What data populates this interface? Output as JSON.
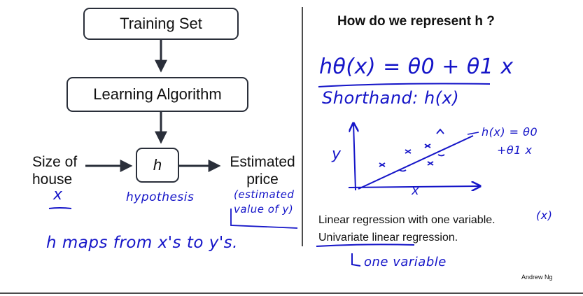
{
  "left": {
    "training_set": "Training Set",
    "learning_algorithm": "Learning Algorithm",
    "h": "h",
    "input_label_line1": "Size of",
    "input_label_line2": "house",
    "output_label_line1": "Estimated",
    "output_label_line2": "price",
    "note_x": "x",
    "note_hypothesis": "hypothesis",
    "note_estimated_line1": "(estimated",
    "note_estimated_line2": "value of y)",
    "note_maps": "h maps from x's to y's."
  },
  "right": {
    "title": "How do we represent h ?",
    "hand_equation": "hθ(x) = θ0 + θ1 x",
    "hand_shorthand": "Shorthand: h(x)",
    "plot_ylabel": "y",
    "plot_xlabel": "x",
    "plot_eq_line1": "h(x) = θ0",
    "plot_eq_line2": "+θ1 x",
    "text_line1": "Linear regression with one variable.",
    "hand_paren_x": "(x)",
    "text_line2": "Univariate linear regression.",
    "hand_one_variable": "one variable"
  },
  "footer": {
    "credit": "Andrew Ng"
  },
  "colors": {
    "ink": "#1515c8",
    "box_border": "#2a2f3a",
    "text": "#111111"
  }
}
